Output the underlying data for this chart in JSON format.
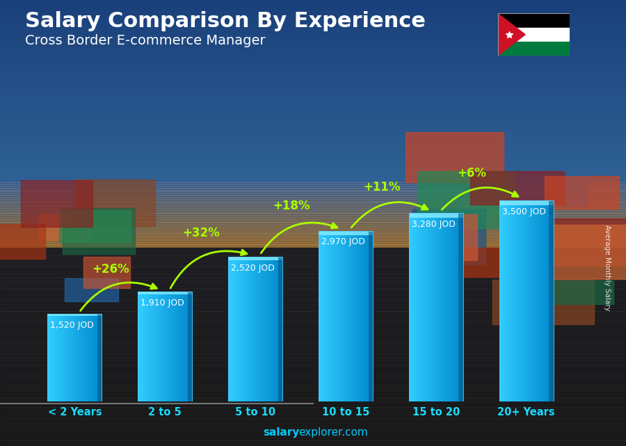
{
  "title": "Salary Comparison By Experience",
  "subtitle": "Cross Border E-commerce Manager",
  "categories": [
    "< 2 Years",
    "2 to 5",
    "5 to 10",
    "10 to 15",
    "15 to 20",
    "20+ Years"
  ],
  "values": [
    1520,
    1910,
    2520,
    2970,
    3280,
    3500
  ],
  "value_labels": [
    "1,520 JOD",
    "1,910 JOD",
    "2,520 JOD",
    "2,970 JOD",
    "3,280 JOD",
    "3,500 JOD"
  ],
  "pct_changes": [
    "+26%",
    "+32%",
    "+18%",
    "+11%",
    "+6%"
  ],
  "bar_color_light": "#40ccff",
  "bar_color_mid": "#18aaee",
  "bar_color_dark": "#0077bb",
  "bar_top_color": "#88ddff",
  "pct_color": "#aaff00",
  "title_color": "#ffffff",
  "subtitle_color": "#ffffff",
  "value_label_color": "#ffffff",
  "ylabel": "Average Monthly Salary",
  "footer_bold": "salary",
  "footer_regular": "explorer.com",
  "footer_color": "#00ccff",
  "ylim": [
    0,
    4500
  ],
  "bar_width": 0.6,
  "bg_sky_top": "#1a4a7a",
  "bg_sky_mid": "#2a6aaa",
  "bg_sky_low": "#3a7acc",
  "bg_ground": "#1a1a1a",
  "bg_horizon_warm": "#c87a30"
}
